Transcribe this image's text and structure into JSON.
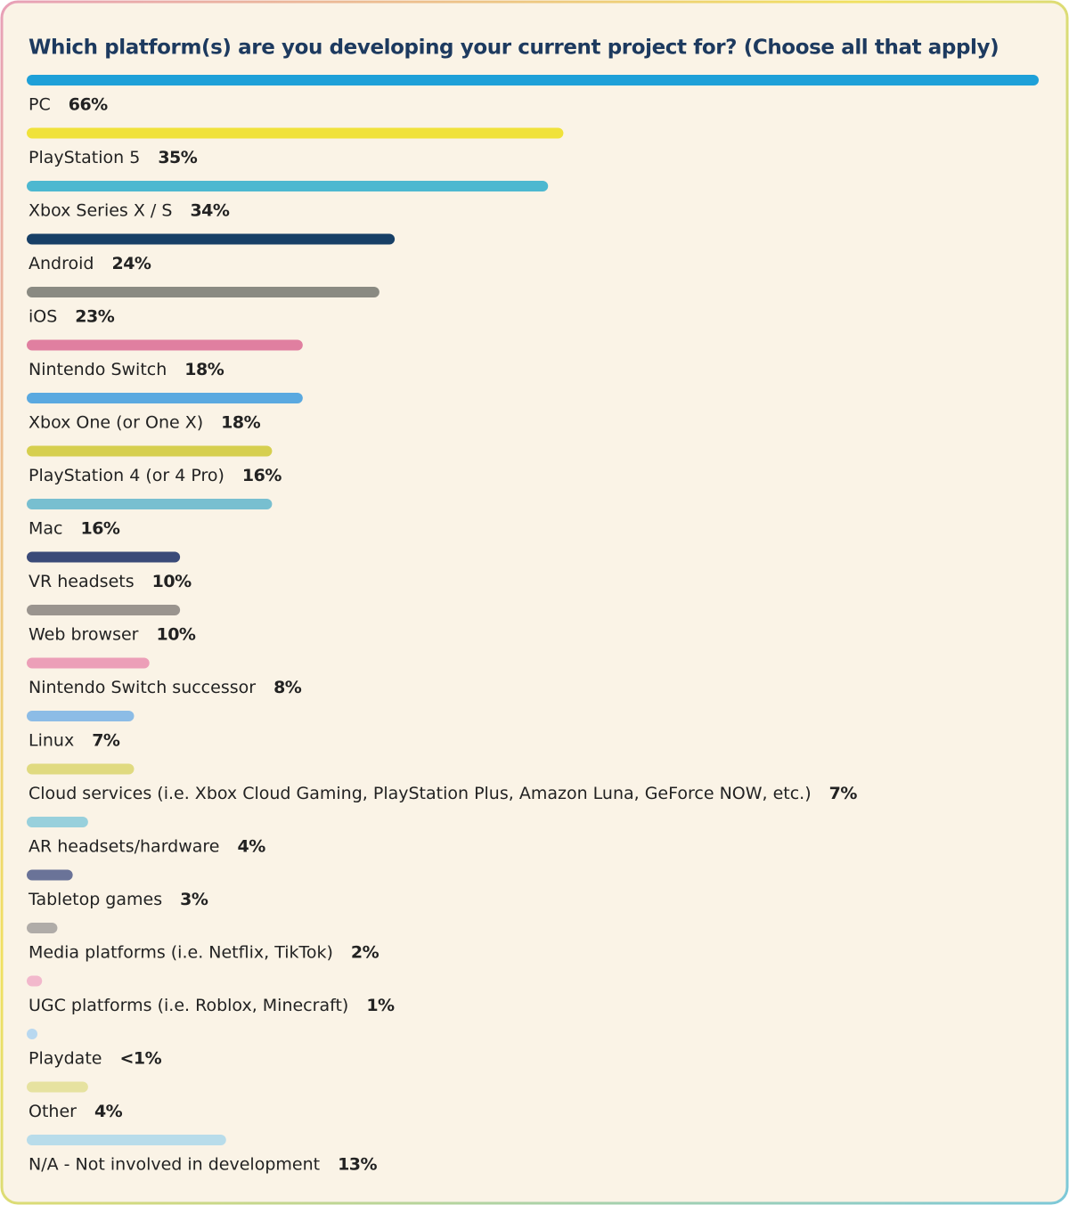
{
  "chart_data": {
    "type": "bar",
    "orientation": "horizontal",
    "title": "Which platform(s) are you developing your current project for? (Choose all that apply)",
    "categories": [
      "PC",
      "PlayStation 5",
      "Xbox Series X / S",
      "Android",
      "iOS",
      "Nintendo Switch",
      "Xbox One (or One X)",
      "PlayStation 4 (or 4 Pro)",
      "Mac",
      "VR headsets",
      "Web browser",
      "Nintendo Switch successor",
      "Linux",
      "Cloud services (i.e. Xbox Cloud Gaming, PlayStation Plus, Amazon Luna, GeForce NOW, etc.)",
      "AR headsets/hardware",
      "Tabletop games",
      "Media platforms (i.e. Netflix, TikTok)",
      "UGC platforms (i.e. Roblox, Minecraft)",
      "Playdate",
      "Other",
      "N/A - Not involved in development"
    ],
    "values": [
      66,
      35,
      34,
      24,
      23,
      18,
      18,
      16,
      16,
      10,
      10,
      8,
      7,
      7,
      4,
      3,
      2,
      1,
      0.5,
      4,
      13
    ],
    "value_labels": [
      "66%",
      "35%",
      "34%",
      "24%",
      "23%",
      "18%",
      "18%",
      "16%",
      "16%",
      "10%",
      "10%",
      "8%",
      "7%",
      "7%",
      "4%",
      "3%",
      "2%",
      "1%",
      "<1%",
      "4%",
      "13%"
    ],
    "colors": [
      "#1ea0d8",
      "#f0e23a",
      "#4db8d0",
      "#173f66",
      "#8a8a82",
      "#e07fa0",
      "#5aa9e0",
      "#d6cf4f",
      "#78bfd0",
      "#3a4a78",
      "#9a948e",
      "#ec9fb8",
      "#8cbce6",
      "#e0da80",
      "#98d0dc",
      "#6a7398",
      "#b0aca8",
      "#f2b8cc",
      "#b8d8f0",
      "#e6e2a0",
      "#b8dcea"
    ]
  }
}
